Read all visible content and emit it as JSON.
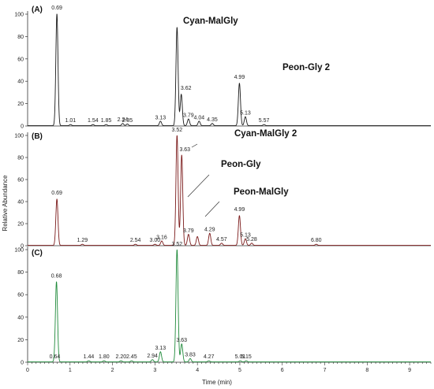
{
  "chart_data": {
    "type": "line",
    "xlabel": "Time (min)",
    "ylabel": "Relative Abundance",
    "xlim": [
      0,
      9.5
    ],
    "ylim": [
      0,
      100
    ],
    "x_ticks": [
      "0",
      "1",
      "2",
      "3",
      "4",
      "5",
      "6",
      "7",
      "8",
      "9"
    ],
    "y_ticks": [
      "0",
      "20",
      "40",
      "60",
      "80",
      "100"
    ],
    "panels": [
      {
        "label": "(A)",
        "color": "#1a1a1a",
        "peak_labels": [
          "0.69",
          "1.01",
          "1.54",
          "1.85",
          "2.24",
          "2.35",
          "3.13",
          "3.62",
          "3.79",
          "4.04",
          "4.35",
          "4.99",
          "5.13",
          "5.57"
        ],
        "annotations": [
          "Cyan-MalGly",
          "Peon-Gly 2"
        ],
        "peaks": [
          {
            "rt": 0.69,
            "h": 100
          },
          {
            "rt": 1.01,
            "h": 1
          },
          {
            "rt": 1.54,
            "h": 1
          },
          {
            "rt": 1.85,
            "h": 1
          },
          {
            "rt": 2.24,
            "h": 2
          },
          {
            "rt": 2.35,
            "h": 1.5
          },
          {
            "rt": 3.13,
            "h": 4
          },
          {
            "rt": 3.52,
            "h": 88
          },
          {
            "rt": 3.62,
            "h": 28
          },
          {
            "rt": 3.79,
            "h": 6
          },
          {
            "rt": 4.04,
            "h": 4
          },
          {
            "rt": 4.35,
            "h": 2
          },
          {
            "rt": 4.99,
            "h": 38
          },
          {
            "rt": 5.13,
            "h": 8
          },
          {
            "rt": 5.57,
            "h": 1
          }
        ]
      },
      {
        "label": "(B)",
        "color": "#7b1a1a",
        "peak_labels": [
          "0.69",
          "1.29",
          "2.54",
          "3.00",
          "3.16",
          "3.52",
          "3.63",
          "3.79",
          "4.29",
          "4.57",
          "4.99",
          "5.13",
          "5.28",
          "6.80"
        ],
        "annotations": [
          "Cyan-MalGly 2",
          "Peon-Gly",
          "Peon-MalGly"
        ],
        "peaks": [
          {
            "rt": 0.69,
            "h": 42
          },
          {
            "rt": 1.29,
            "h": 1
          },
          {
            "rt": 2.54,
            "h": 1
          },
          {
            "rt": 3.0,
            "h": 1
          },
          {
            "rt": 3.16,
            "h": 4
          },
          {
            "rt": 3.52,
            "h": 100
          },
          {
            "rt": 3.63,
            "h": 82
          },
          {
            "rt": 3.79,
            "h": 10
          },
          {
            "rt": 4.0,
            "h": 8
          },
          {
            "rt": 4.29,
            "h": 11
          },
          {
            "rt": 4.57,
            "h": 2
          },
          {
            "rt": 4.99,
            "h": 27
          },
          {
            "rt": 5.13,
            "h": 6
          },
          {
            "rt": 5.28,
            "h": 2
          },
          {
            "rt": 6.8,
            "h": 1
          }
        ]
      },
      {
        "label": "(C)",
        "color": "#1f8a3a",
        "peak_labels": [
          "0.64",
          "0.68",
          "1.44",
          "1.80",
          "2.20",
          "2.45",
          "2.94",
          "3.13",
          "3.52",
          "3.63",
          "3.83",
          "4.27",
          "5.01",
          "5.15"
        ],
        "annotations": [],
        "peaks": [
          {
            "rt": 0.64,
            "h": 1
          },
          {
            "rt": 0.68,
            "h": 71
          },
          {
            "rt": 1.44,
            "h": 1
          },
          {
            "rt": 1.8,
            "h": 1
          },
          {
            "rt": 2.2,
            "h": 1
          },
          {
            "rt": 2.45,
            "h": 1
          },
          {
            "rt": 2.94,
            "h": 2
          },
          {
            "rt": 3.13,
            "h": 9
          },
          {
            "rt": 3.52,
            "h": 100
          },
          {
            "rt": 3.63,
            "h": 16
          },
          {
            "rt": 3.83,
            "h": 3
          },
          {
            "rt": 4.27,
            "h": 1
          },
          {
            "rt": 5.01,
            "h": 1
          },
          {
            "rt": 5.15,
            "h": 1
          }
        ]
      }
    ]
  }
}
